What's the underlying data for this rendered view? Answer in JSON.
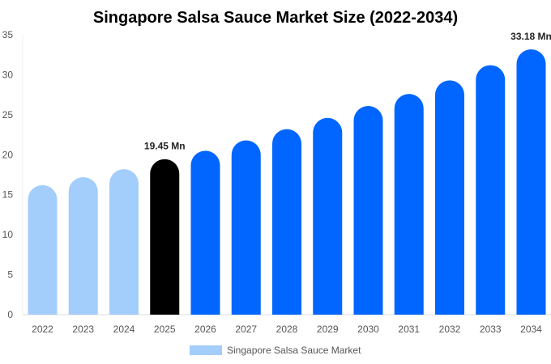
{
  "chart_data": {
    "type": "bar",
    "title": "Singapore Salsa Sauce Market Size (2022-2034)",
    "xlabel": "",
    "ylabel": "",
    "categories": [
      "2022",
      "2023",
      "2024",
      "2025",
      "2026",
      "2027",
      "2028",
      "2029",
      "2030",
      "2031",
      "2032",
      "2033",
      "2034"
    ],
    "series": [
      {
        "name": "Singapore Salsa Sauce Market",
        "values": [
          16.2,
          17.2,
          18.2,
          19.45,
          20.5,
          21.8,
          23.2,
          24.6,
          26.1,
          27.6,
          29.3,
          31.2,
          33.18
        ]
      }
    ],
    "ylim": [
      0,
      35
    ],
    "yticks": [
      0,
      5,
      10,
      15,
      20,
      25,
      30,
      35
    ],
    "grid": false,
    "legend": "bottom",
    "data_labels": [
      {
        "category": "2025",
        "text": "19.45 Mn"
      },
      {
        "category": "2034",
        "text": "33.18 Mn"
      }
    ],
    "colors": {
      "historical": "#a3cdfb",
      "current": "#000000",
      "forecast": "#0066ff"
    },
    "bar_color_groups": [
      "historical",
      "historical",
      "historical",
      "current",
      "forecast",
      "forecast",
      "forecast",
      "forecast",
      "forecast",
      "forecast",
      "forecast",
      "forecast",
      "forecast"
    ]
  }
}
